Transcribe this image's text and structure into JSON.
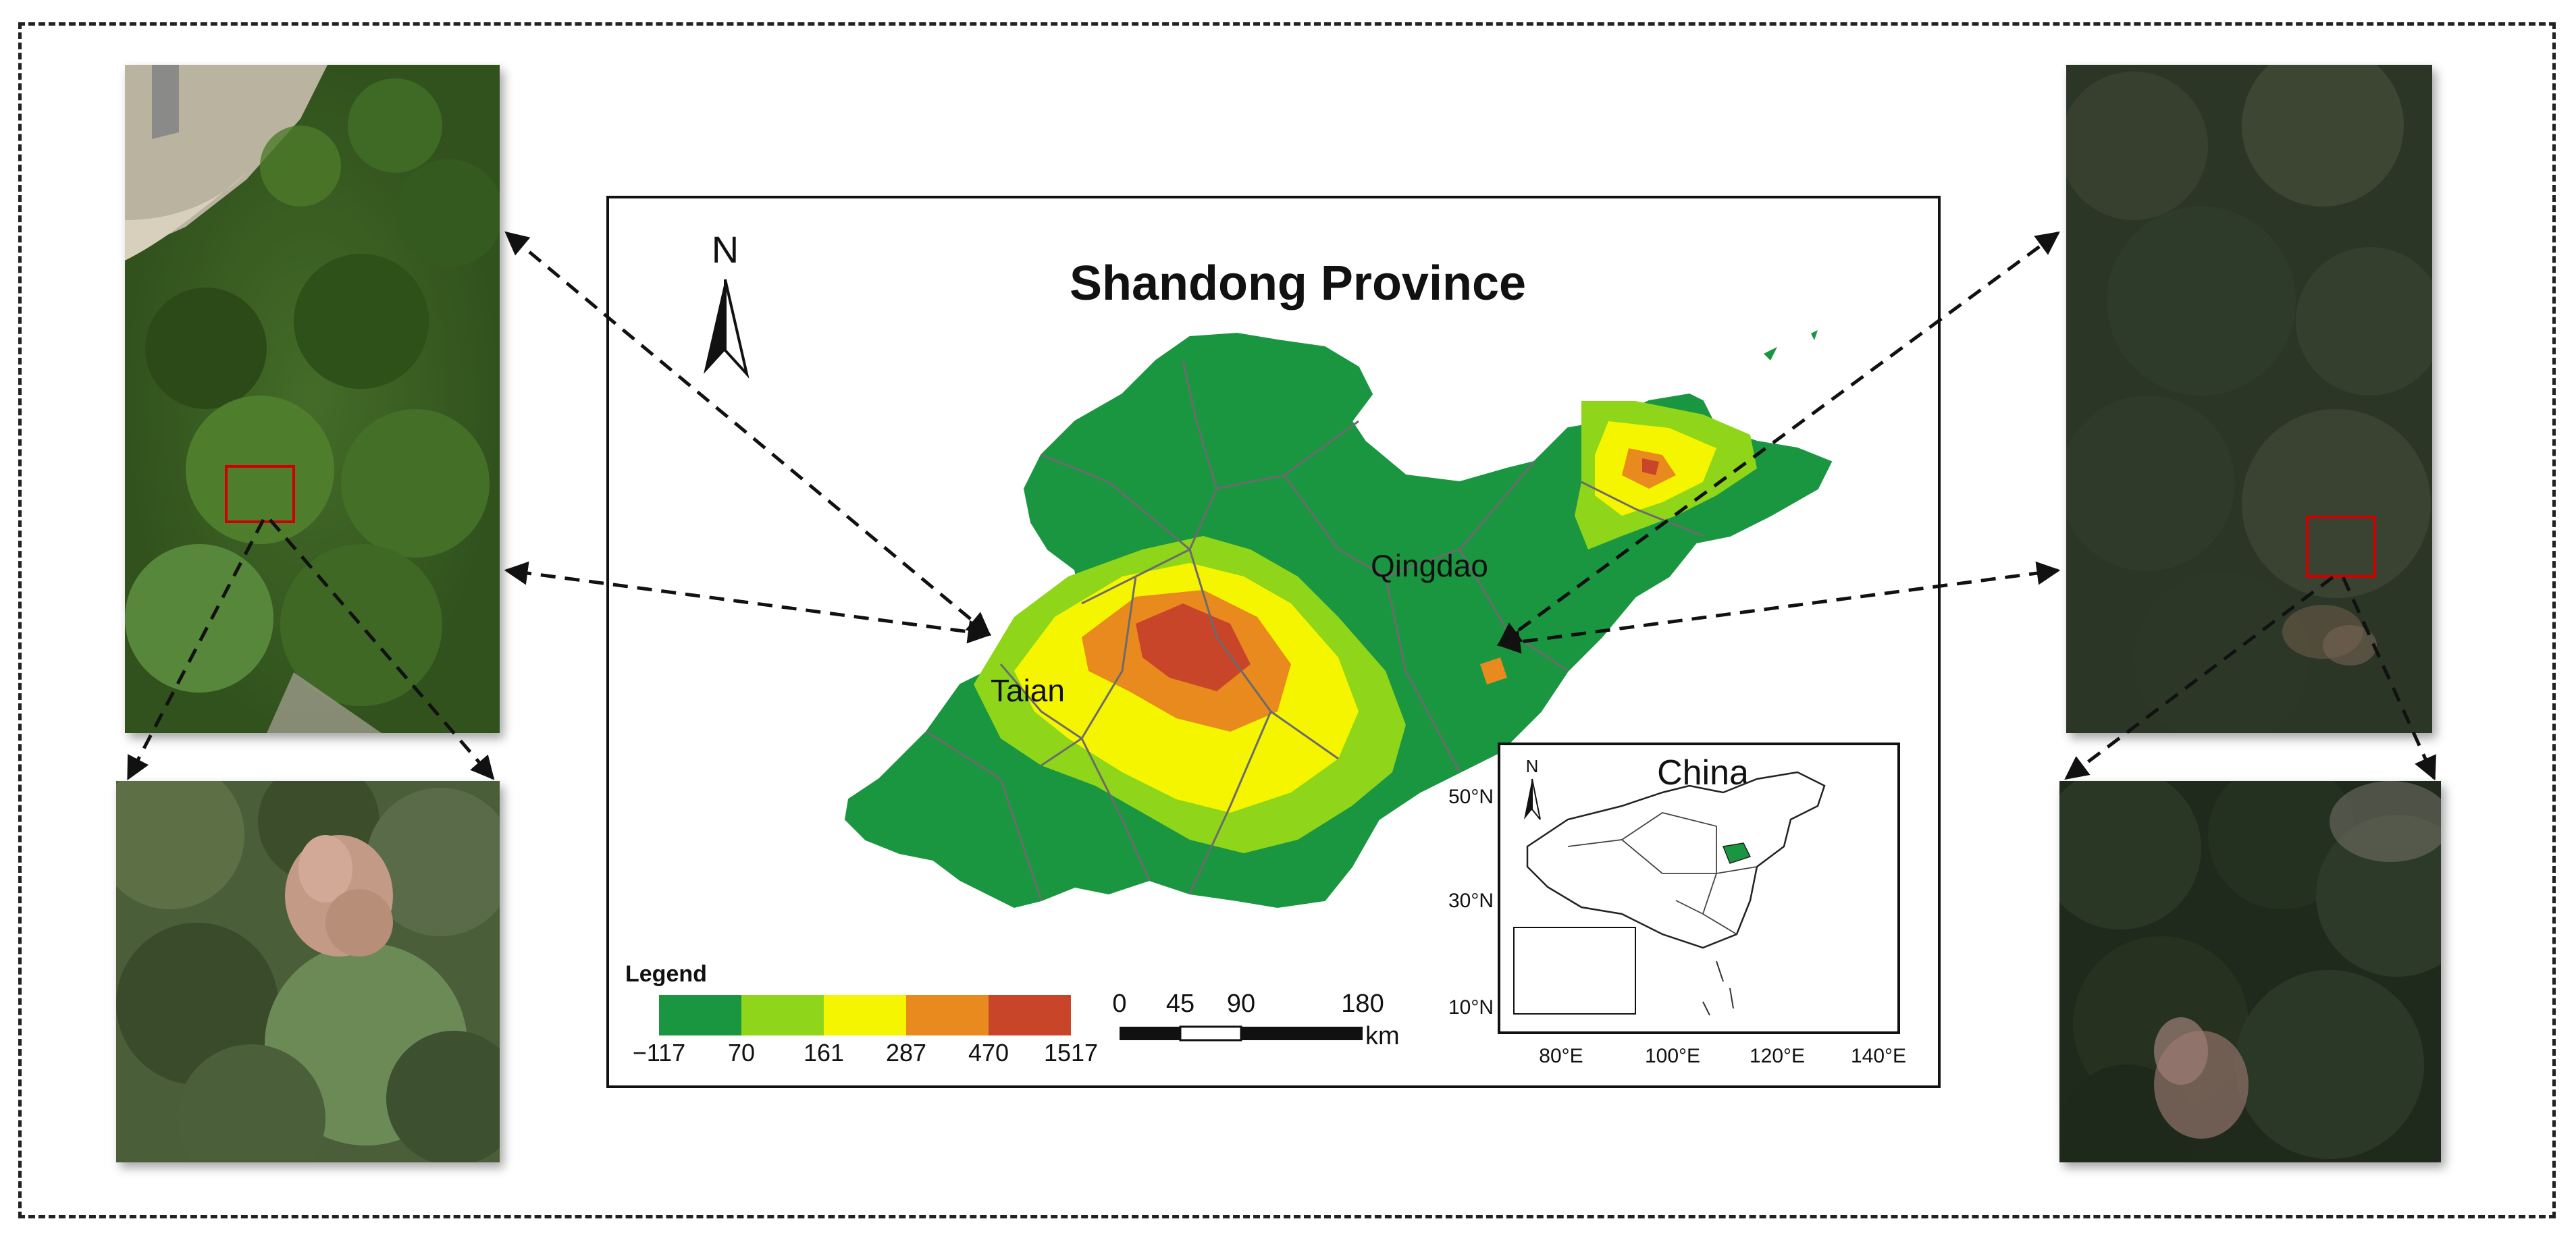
{
  "map": {
    "title": "Shandong Province",
    "north_label": "N",
    "cities": [
      "Qingdao",
      "Taian"
    ],
    "legend": {
      "title": "Legend",
      "breaks": [
        "−117",
        "70",
        "161",
        "287",
        "470",
        "1517"
      ],
      "colors": [
        "#1a9641",
        "#8fd61a",
        "#f5f500",
        "#e88a1e",
        "#c8452a"
      ]
    },
    "scalebar": {
      "ticks": [
        "0",
        "45",
        "90",
        "180"
      ],
      "unit": "km"
    },
    "inset": {
      "title": "China",
      "north_label": "N",
      "lat_labels": [
        "50°N",
        "30°N",
        "10°N"
      ],
      "lon_labels": [
        "80°E",
        "100°E",
        "120°E",
        "140°E"
      ],
      "highlight_color": "#1a9641"
    }
  }
}
